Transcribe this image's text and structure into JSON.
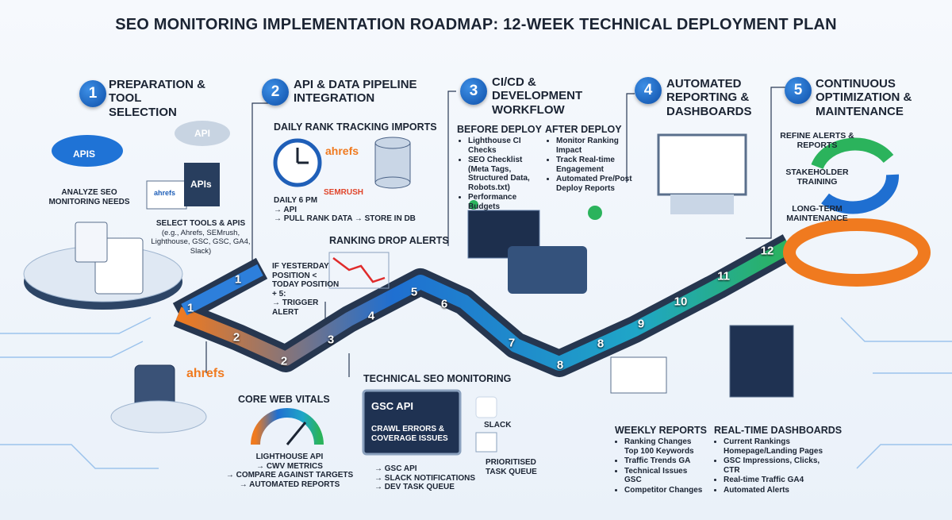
{
  "title": "SEO MONITORING IMPLEMENTATION ROADMAP: 12-WEEK TECHNICAL DEPLOYMENT PLAN",
  "phases": [
    {
      "number": 1,
      "title": "PREPARATION & TOOL SELECTION"
    },
    {
      "number": 2,
      "title": "API & DATA PIPELINE INTEGRATION"
    },
    {
      "number": 3,
      "title": "CI/CD & DEVELOPMENT WORKFLOW"
    },
    {
      "number": 4,
      "title": "AUTOMATED REPORTING & DASHBOARDS"
    },
    {
      "number": 5,
      "title": "CONTINUOUS OPTIMIZATION & MAINTENANCE"
    }
  ],
  "preparation": {
    "icon_labels": [
      "APIs",
      "API",
      "ahrefs",
      "APIs"
    ],
    "needs": "ANALYZE SEO MONITORING NEEDS",
    "tools": "SELECT TOOLS & APIs",
    "tools_examples": "(e.g., Ahrefs, SEMrush, Lighthouse, GSC, GSC, GA4, Slack)"
  },
  "pipeline": {
    "rank_heading": "DAILY RANK TRACKING IMPORTS",
    "brands": [
      "ahrefs",
      "SEMRUSH"
    ],
    "rank_flow": [
      "DAILY 6 PM",
      "→ API",
      "→ PULL RANK DATA → STORE IN DB"
    ],
    "alerts_heading": "RANKING DROP ALERTS",
    "alert_rule": [
      "IF YESTERDAY POSITION < TODAY POSITION + 5:",
      "→ TRIGGER ALERT"
    ]
  },
  "vitals": {
    "brand": "ahrefs",
    "heading": "CORE WEB VITALS",
    "flow": [
      "LIGHTHOUSE API",
      "→ CWV METRICS",
      "→ COMPARE AGAINST TARGETS",
      "→ AUTOMATED REPORTS"
    ]
  },
  "technical": {
    "heading": "TECHNICAL SEO MONITORING",
    "screen_title": "GSC API",
    "screen_text": "CRAWL ERRORS & COVERAGE ISSUES",
    "slack": "SLACK",
    "queue": "PRIORITISED TASK QUEUE",
    "flow": [
      "→ GSC API",
      "→ SLACK NOTIFICATIONS",
      "→ DEV TASK QUEUE"
    ]
  },
  "cicd": {
    "before_heading": "BEFORE DEPLOY",
    "before": [
      "Lighthouse CI Checks",
      "SEO Checklist (Meta Tags, Structured Data, Robots.txt)",
      "Performance Budgets"
    ],
    "after_heading": "AFTER DEPLOY",
    "after": [
      "Monitor Ranking Impact",
      "Track Real-time Engagement",
      "Automated Pre/Post Deploy Reports"
    ]
  },
  "optimization": {
    "items": [
      "REFINE ALERTS & REPORTS",
      "STAKEHOLDER TRAINING",
      "LONG-TERM MAINTENANCE"
    ]
  },
  "weekly_reports": {
    "heading": "WEEKLY REPORTS",
    "items": [
      "Ranking Changes Top 100 Keywords",
      "Traffic Trends GA",
      "Technical Issues GSC",
      "Competitor Changes"
    ]
  },
  "dashboards": {
    "heading": "REAL-TIME DASHBOARDS",
    "items": [
      "Current Rankings Homepage/Landing Pages",
      "GSC Impressions, Clicks, CTR",
      "Real-time Traffic GA4",
      "Automated Alerts"
    ]
  },
  "road_labels": [
    1,
    1,
    2,
    2,
    3,
    4,
    5,
    6,
    7,
    8,
    8,
    9,
    10,
    11,
    12
  ]
}
